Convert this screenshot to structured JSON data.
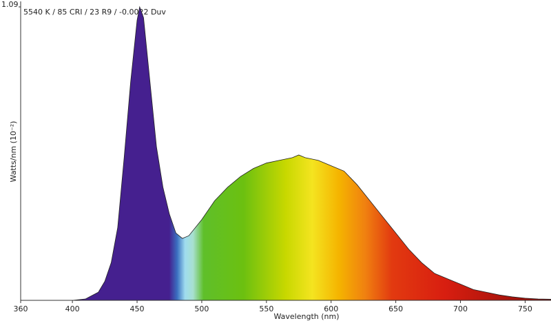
{
  "chart_data": {
    "type": "area",
    "annotation": "5540 K / 85 CRI / 23 R9 / -0.0022 Duv",
    "x_label": "Wavelength (nm)",
    "y_label": "Watts/nm (10⁻²)",
    "x": [
      360,
      400,
      410,
      420,
      425,
      430,
      435,
      440,
      445,
      450,
      452,
      455,
      460,
      465,
      470,
      475,
      480,
      485,
      490,
      495,
      500,
      510,
      520,
      530,
      540,
      550,
      560,
      570,
      575,
      580,
      590,
      600,
      610,
      620,
      630,
      640,
      650,
      660,
      670,
      680,
      690,
      700,
      710,
      720,
      730,
      740,
      750,
      760,
      770
    ],
    "values": [
      0,
      0,
      0.005,
      0.03,
      0.07,
      0.14,
      0.27,
      0.53,
      0.81,
      1.04,
      1.09,
      1.05,
      0.81,
      0.57,
      0.42,
      0.32,
      0.25,
      0.23,
      0.24,
      0.27,
      0.3,
      0.37,
      0.42,
      0.46,
      0.49,
      0.51,
      0.52,
      0.53,
      0.54,
      0.53,
      0.52,
      0.5,
      0.48,
      0.43,
      0.37,
      0.31,
      0.25,
      0.19,
      0.14,
      0.1,
      0.08,
      0.06,
      0.04,
      0.03,
      0.02,
      0.013,
      0.008,
      0.005,
      0.004
    ],
    "xlim": [
      360,
      770
    ],
    "xticks": [
      360,
      400,
      450,
      500,
      550,
      600,
      650,
      700,
      750
    ],
    "ylim": [
      0,
      1.09
    ],
    "yticks": [
      1.09
    ]
  }
}
